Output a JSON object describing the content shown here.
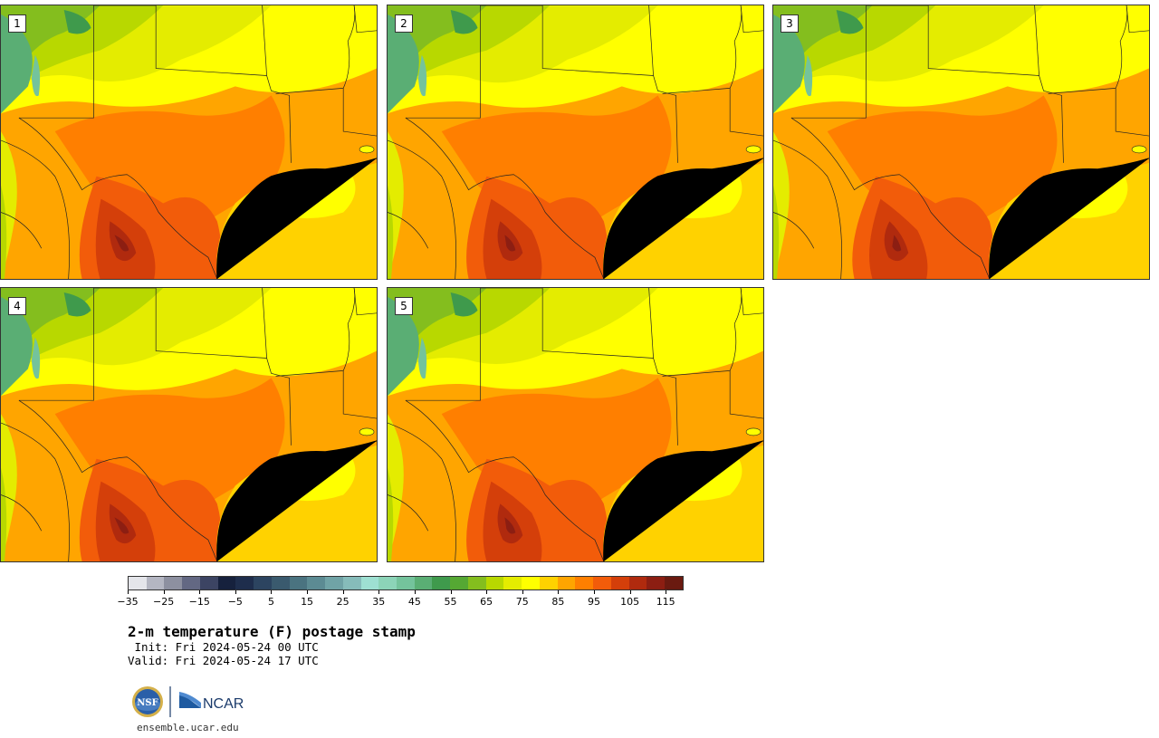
{
  "panels": [
    {
      "label": "1",
      "variant": 0
    },
    {
      "label": "2",
      "variant": 1
    },
    {
      "label": "3",
      "variant": 2
    },
    {
      "label": "4",
      "variant": 3
    },
    {
      "label": "5",
      "variant": 4
    }
  ],
  "colorbar": {
    "min": -35,
    "max": 120,
    "step": 5,
    "tick_values": [
      -35,
      -25,
      -15,
      -5,
      5,
      15,
      25,
      35,
      45,
      55,
      65,
      75,
      85,
      95,
      105,
      115
    ],
    "tick_labels": [
      "−35",
      "−25",
      "−15",
      "−5",
      "5",
      "15",
      "25",
      "35",
      "45",
      "55",
      "65",
      "75",
      "85",
      "95",
      "105",
      "115"
    ],
    "colors": [
      "#e4e5ea",
      "#b4b6c2",
      "#8d90a0",
      "#636883",
      "#3c4463",
      "#16213d",
      "#1e2d4c",
      "#2c4460",
      "#3a5a6e",
      "#4a7380",
      "#5c8b93",
      "#70a3a6",
      "#86bcba",
      "#9ee0d2",
      "#8cd4b8",
      "#74c39c",
      "#5aae74",
      "#3f9a4c",
      "#55a833",
      "#84be1e",
      "#b8d800",
      "#e4ec00",
      "#ffff00",
      "#ffd200",
      "#ffa500",
      "#ff7f00",
      "#f25c0a",
      "#d43f0a",
      "#b02a0e",
      "#8c1e12",
      "#6a1a10"
    ]
  },
  "title": "2-m temperature (F) postage stamp",
  "init": " Init: Fri 2024-05-24 00 UTC",
  "valid": "Valid: Fri 2024-05-24 17 UTC",
  "logos": {
    "nsf": "NSF",
    "ncar": "NCAR"
  },
  "site": "ensemble.ucar.edu"
}
